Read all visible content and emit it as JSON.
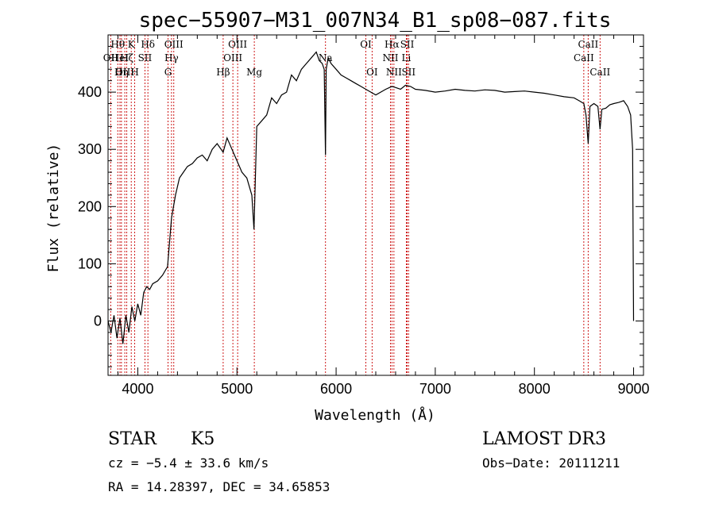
{
  "chart_data": {
    "type": "line",
    "title": "spec−55907−M31_007N34_B1_sp08−087.fits",
    "xlabel": "Wavelength (Å)",
    "ylabel": "Flux (relative)",
    "xlim": [
      3700,
      9100
    ],
    "ylim": [
      -95,
      500
    ],
    "x_ticks": [
      4000,
      5000,
      6000,
      7000,
      8000,
      9000
    ],
    "y_ticks": [
      0,
      100,
      200,
      300,
      400
    ],
    "series": [
      {
        "name": "flux",
        "x": [
          3700,
          3730,
          3760,
          3790,
          3820,
          3850,
          3880,
          3910,
          3940,
          3970,
          4000,
          4030,
          4060,
          4090,
          4120,
          4150,
          4200,
          4250,
          4300,
          4340,
          4380,
          4420,
          4460,
          4500,
          4550,
          4600,
          4650,
          4700,
          4750,
          4800,
          4861,
          4900,
          4950,
          5000,
          5050,
          5100,
          5150,
          5172,
          5200,
          5250,
          5300,
          5350,
          5400,
          5450,
          5500,
          5550,
          5600,
          5650,
          5700,
          5750,
          5800,
          5830,
          5860,
          5880,
          5893,
          5900,
          5920,
          5950,
          6000,
          6050,
          6100,
          6150,
          6200,
          6250,
          6300,
          6350,
          6400,
          6450,
          6500,
          6563,
          6600,
          6650,
          6700,
          6750,
          6800,
          6900,
          7000,
          7100,
          7200,
          7300,
          7400,
          7500,
          7600,
          7700,
          7800,
          7900,
          8000,
          8100,
          8200,
          8300,
          8400,
          8450,
          8498,
          8520,
          8542,
          8560,
          8600,
          8640,
          8662,
          8680,
          8720,
          8760,
          8800,
          8850,
          8900,
          8940,
          8970,
          8990,
          9000
        ],
        "y": [
          0,
          -20,
          10,
          -30,
          5,
          -40,
          10,
          -20,
          25,
          0,
          30,
          10,
          50,
          60,
          55,
          65,
          70,
          80,
          95,
          180,
          220,
          250,
          260,
          270,
          275,
          285,
          290,
          280,
          300,
          310,
          295,
          320,
          300,
          280,
          260,
          250,
          220,
          160,
          340,
          350,
          360,
          390,
          380,
          395,
          400,
          430,
          420,
          440,
          450,
          460,
          470,
          455,
          450,
          440,
          290,
          440,
          460,
          450,
          440,
          430,
          425,
          420,
          415,
          410,
          405,
          400,
          395,
          400,
          405,
          410,
          408,
          405,
          412,
          410,
          405,
          403,
          400,
          402,
          405,
          403,
          402,
          404,
          403,
          400,
          401,
          402,
          400,
          398,
          395,
          392,
          390,
          385,
          380,
          360,
          310,
          375,
          380,
          375,
          335,
          370,
          372,
          378,
          380,
          382,
          385,
          375,
          360,
          300,
          0
        ]
      }
    ],
    "spectral_lines": [
      {
        "name": "Hθ",
        "x": 3798,
        "row": 0
      },
      {
        "name": "OII",
        "x": 3727,
        "row": 1
      },
      {
        "name": "OIII",
        "x": 3869,
        "row": 2
      },
      {
        "name": "Hζ",
        "x": 3889,
        "row": 1
      },
      {
        "name": "HeI",
        "x": 3820,
        "row": 1
      },
      {
        "name": "K",
        "x": 3934,
        "row": 0
      },
      {
        "name": "Hη",
        "x": 3835,
        "row": 2
      },
      {
        "name": "H",
        "x": 3969,
        "row": 2
      },
      {
        "name": "SII",
        "x": 4072,
        "row": 1
      },
      {
        "name": "Hδ",
        "x": 4102,
        "row": 0
      },
      {
        "name": "OIII",
        "x": 4363,
        "row": 0
      },
      {
        "name": "Hγ",
        "x": 4340,
        "row": 1
      },
      {
        "name": "G",
        "x": 4305,
        "row": 2
      },
      {
        "name": "Hβ",
        "x": 4861,
        "row": 2
      },
      {
        "name": "OIII",
        "x": 4959,
        "row": 1
      },
      {
        "name": "OIII",
        "x": 5007,
        "row": 0
      },
      {
        "name": "Mg",
        "x": 5175,
        "row": 2
      },
      {
        "name": "Na",
        "x": 5893,
        "row": 1
      },
      {
        "name": "OI",
        "x": 6300,
        "row": 0
      },
      {
        "name": "OI",
        "x": 6363,
        "row": 2
      },
      {
        "name": "Hα",
        "x": 6563,
        "row": 0
      },
      {
        "name": "NII",
        "x": 6548,
        "row": 1
      },
      {
        "name": "NII",
        "x": 6583,
        "row": 2
      },
      {
        "name": "SII",
        "x": 6717,
        "row": 0
      },
      {
        "name": "Li",
        "x": 6708,
        "row": 1
      },
      {
        "name": "SII",
        "x": 6731,
        "row": 2
      },
      {
        "name": "CaII",
        "x": 8498,
        "row": 1
      },
      {
        "name": "CaII",
        "x": 8542,
        "row": 0
      },
      {
        "name": "CaII",
        "x": 8662,
        "row": 2
      }
    ]
  },
  "info": {
    "class": "STAR",
    "subclass": "K5",
    "survey": "LAMOST DR3",
    "cz": "cz = −5.4 ± 33.6 km/s",
    "obs_date": "Obs−Date: 20111211",
    "radec": "RA =  14.28397, DEC =  34.65853"
  }
}
